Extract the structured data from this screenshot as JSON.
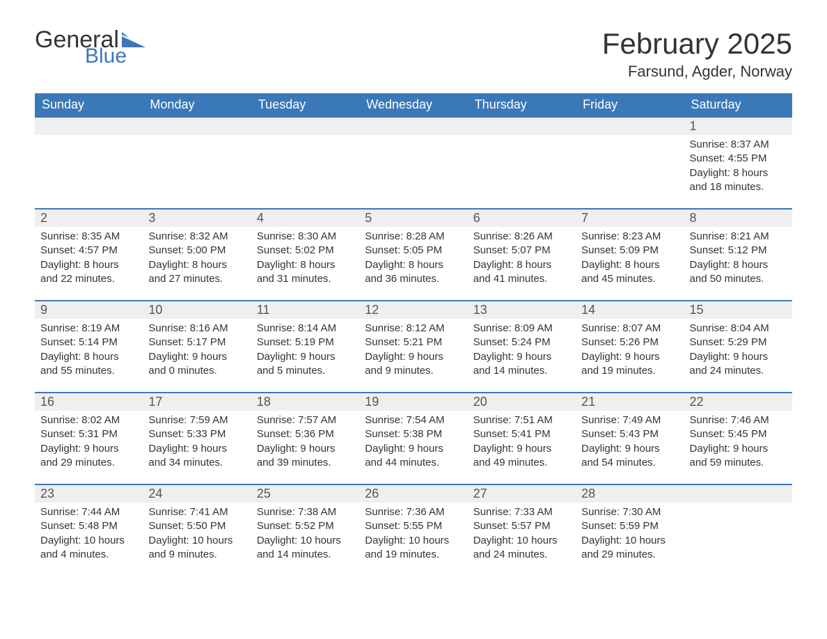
{
  "logo": {
    "text1": "General",
    "text2": "Blue",
    "flag_color": "#3b78b8"
  },
  "title": {
    "month": "February 2025",
    "location": "Farsund, Agder, Norway"
  },
  "colors": {
    "header_bg": "#3b78b8",
    "header_text": "#ffffff",
    "row_border": "#3b78b8",
    "daynum_bg": "#efefef",
    "body_text": "#333333"
  },
  "day_headers": [
    "Sunday",
    "Monday",
    "Tuesday",
    "Wednesday",
    "Thursday",
    "Friday",
    "Saturday"
  ],
  "weeks": [
    [
      null,
      null,
      null,
      null,
      null,
      null,
      {
        "n": "1",
        "sr": "8:37 AM",
        "ss": "4:55 PM",
        "dl": "8 hours and 18 minutes."
      }
    ],
    [
      {
        "n": "2",
        "sr": "8:35 AM",
        "ss": "4:57 PM",
        "dl": "8 hours and 22 minutes."
      },
      {
        "n": "3",
        "sr": "8:32 AM",
        "ss": "5:00 PM",
        "dl": "8 hours and 27 minutes."
      },
      {
        "n": "4",
        "sr": "8:30 AM",
        "ss": "5:02 PM",
        "dl": "8 hours and 31 minutes."
      },
      {
        "n": "5",
        "sr": "8:28 AM",
        "ss": "5:05 PM",
        "dl": "8 hours and 36 minutes."
      },
      {
        "n": "6",
        "sr": "8:26 AM",
        "ss": "5:07 PM",
        "dl": "8 hours and 41 minutes."
      },
      {
        "n": "7",
        "sr": "8:23 AM",
        "ss": "5:09 PM",
        "dl": "8 hours and 45 minutes."
      },
      {
        "n": "8",
        "sr": "8:21 AM",
        "ss": "5:12 PM",
        "dl": "8 hours and 50 minutes."
      }
    ],
    [
      {
        "n": "9",
        "sr": "8:19 AM",
        "ss": "5:14 PM",
        "dl": "8 hours and 55 minutes."
      },
      {
        "n": "10",
        "sr": "8:16 AM",
        "ss": "5:17 PM",
        "dl": "9 hours and 0 minutes."
      },
      {
        "n": "11",
        "sr": "8:14 AM",
        "ss": "5:19 PM",
        "dl": "9 hours and 5 minutes."
      },
      {
        "n": "12",
        "sr": "8:12 AM",
        "ss": "5:21 PM",
        "dl": "9 hours and 9 minutes."
      },
      {
        "n": "13",
        "sr": "8:09 AM",
        "ss": "5:24 PM",
        "dl": "9 hours and 14 minutes."
      },
      {
        "n": "14",
        "sr": "8:07 AM",
        "ss": "5:26 PM",
        "dl": "9 hours and 19 minutes."
      },
      {
        "n": "15",
        "sr": "8:04 AM",
        "ss": "5:29 PM",
        "dl": "9 hours and 24 minutes."
      }
    ],
    [
      {
        "n": "16",
        "sr": "8:02 AM",
        "ss": "5:31 PM",
        "dl": "9 hours and 29 minutes."
      },
      {
        "n": "17",
        "sr": "7:59 AM",
        "ss": "5:33 PM",
        "dl": "9 hours and 34 minutes."
      },
      {
        "n": "18",
        "sr": "7:57 AM",
        "ss": "5:36 PM",
        "dl": "9 hours and 39 minutes."
      },
      {
        "n": "19",
        "sr": "7:54 AM",
        "ss": "5:38 PM",
        "dl": "9 hours and 44 minutes."
      },
      {
        "n": "20",
        "sr": "7:51 AM",
        "ss": "5:41 PM",
        "dl": "9 hours and 49 minutes."
      },
      {
        "n": "21",
        "sr": "7:49 AM",
        "ss": "5:43 PM",
        "dl": "9 hours and 54 minutes."
      },
      {
        "n": "22",
        "sr": "7:46 AM",
        "ss": "5:45 PM",
        "dl": "9 hours and 59 minutes."
      }
    ],
    [
      {
        "n": "23",
        "sr": "7:44 AM",
        "ss": "5:48 PM",
        "dl": "10 hours and 4 minutes."
      },
      {
        "n": "24",
        "sr": "7:41 AM",
        "ss": "5:50 PM",
        "dl": "10 hours and 9 minutes."
      },
      {
        "n": "25",
        "sr": "7:38 AM",
        "ss": "5:52 PM",
        "dl": "10 hours and 14 minutes."
      },
      {
        "n": "26",
        "sr": "7:36 AM",
        "ss": "5:55 PM",
        "dl": "10 hours and 19 minutes."
      },
      {
        "n": "27",
        "sr": "7:33 AM",
        "ss": "5:57 PM",
        "dl": "10 hours and 24 minutes."
      },
      {
        "n": "28",
        "sr": "7:30 AM",
        "ss": "5:59 PM",
        "dl": "10 hours and 29 minutes."
      },
      null
    ]
  ],
  "labels": {
    "sunrise": "Sunrise: ",
    "sunset": "Sunset: ",
    "daylight": "Daylight: "
  }
}
